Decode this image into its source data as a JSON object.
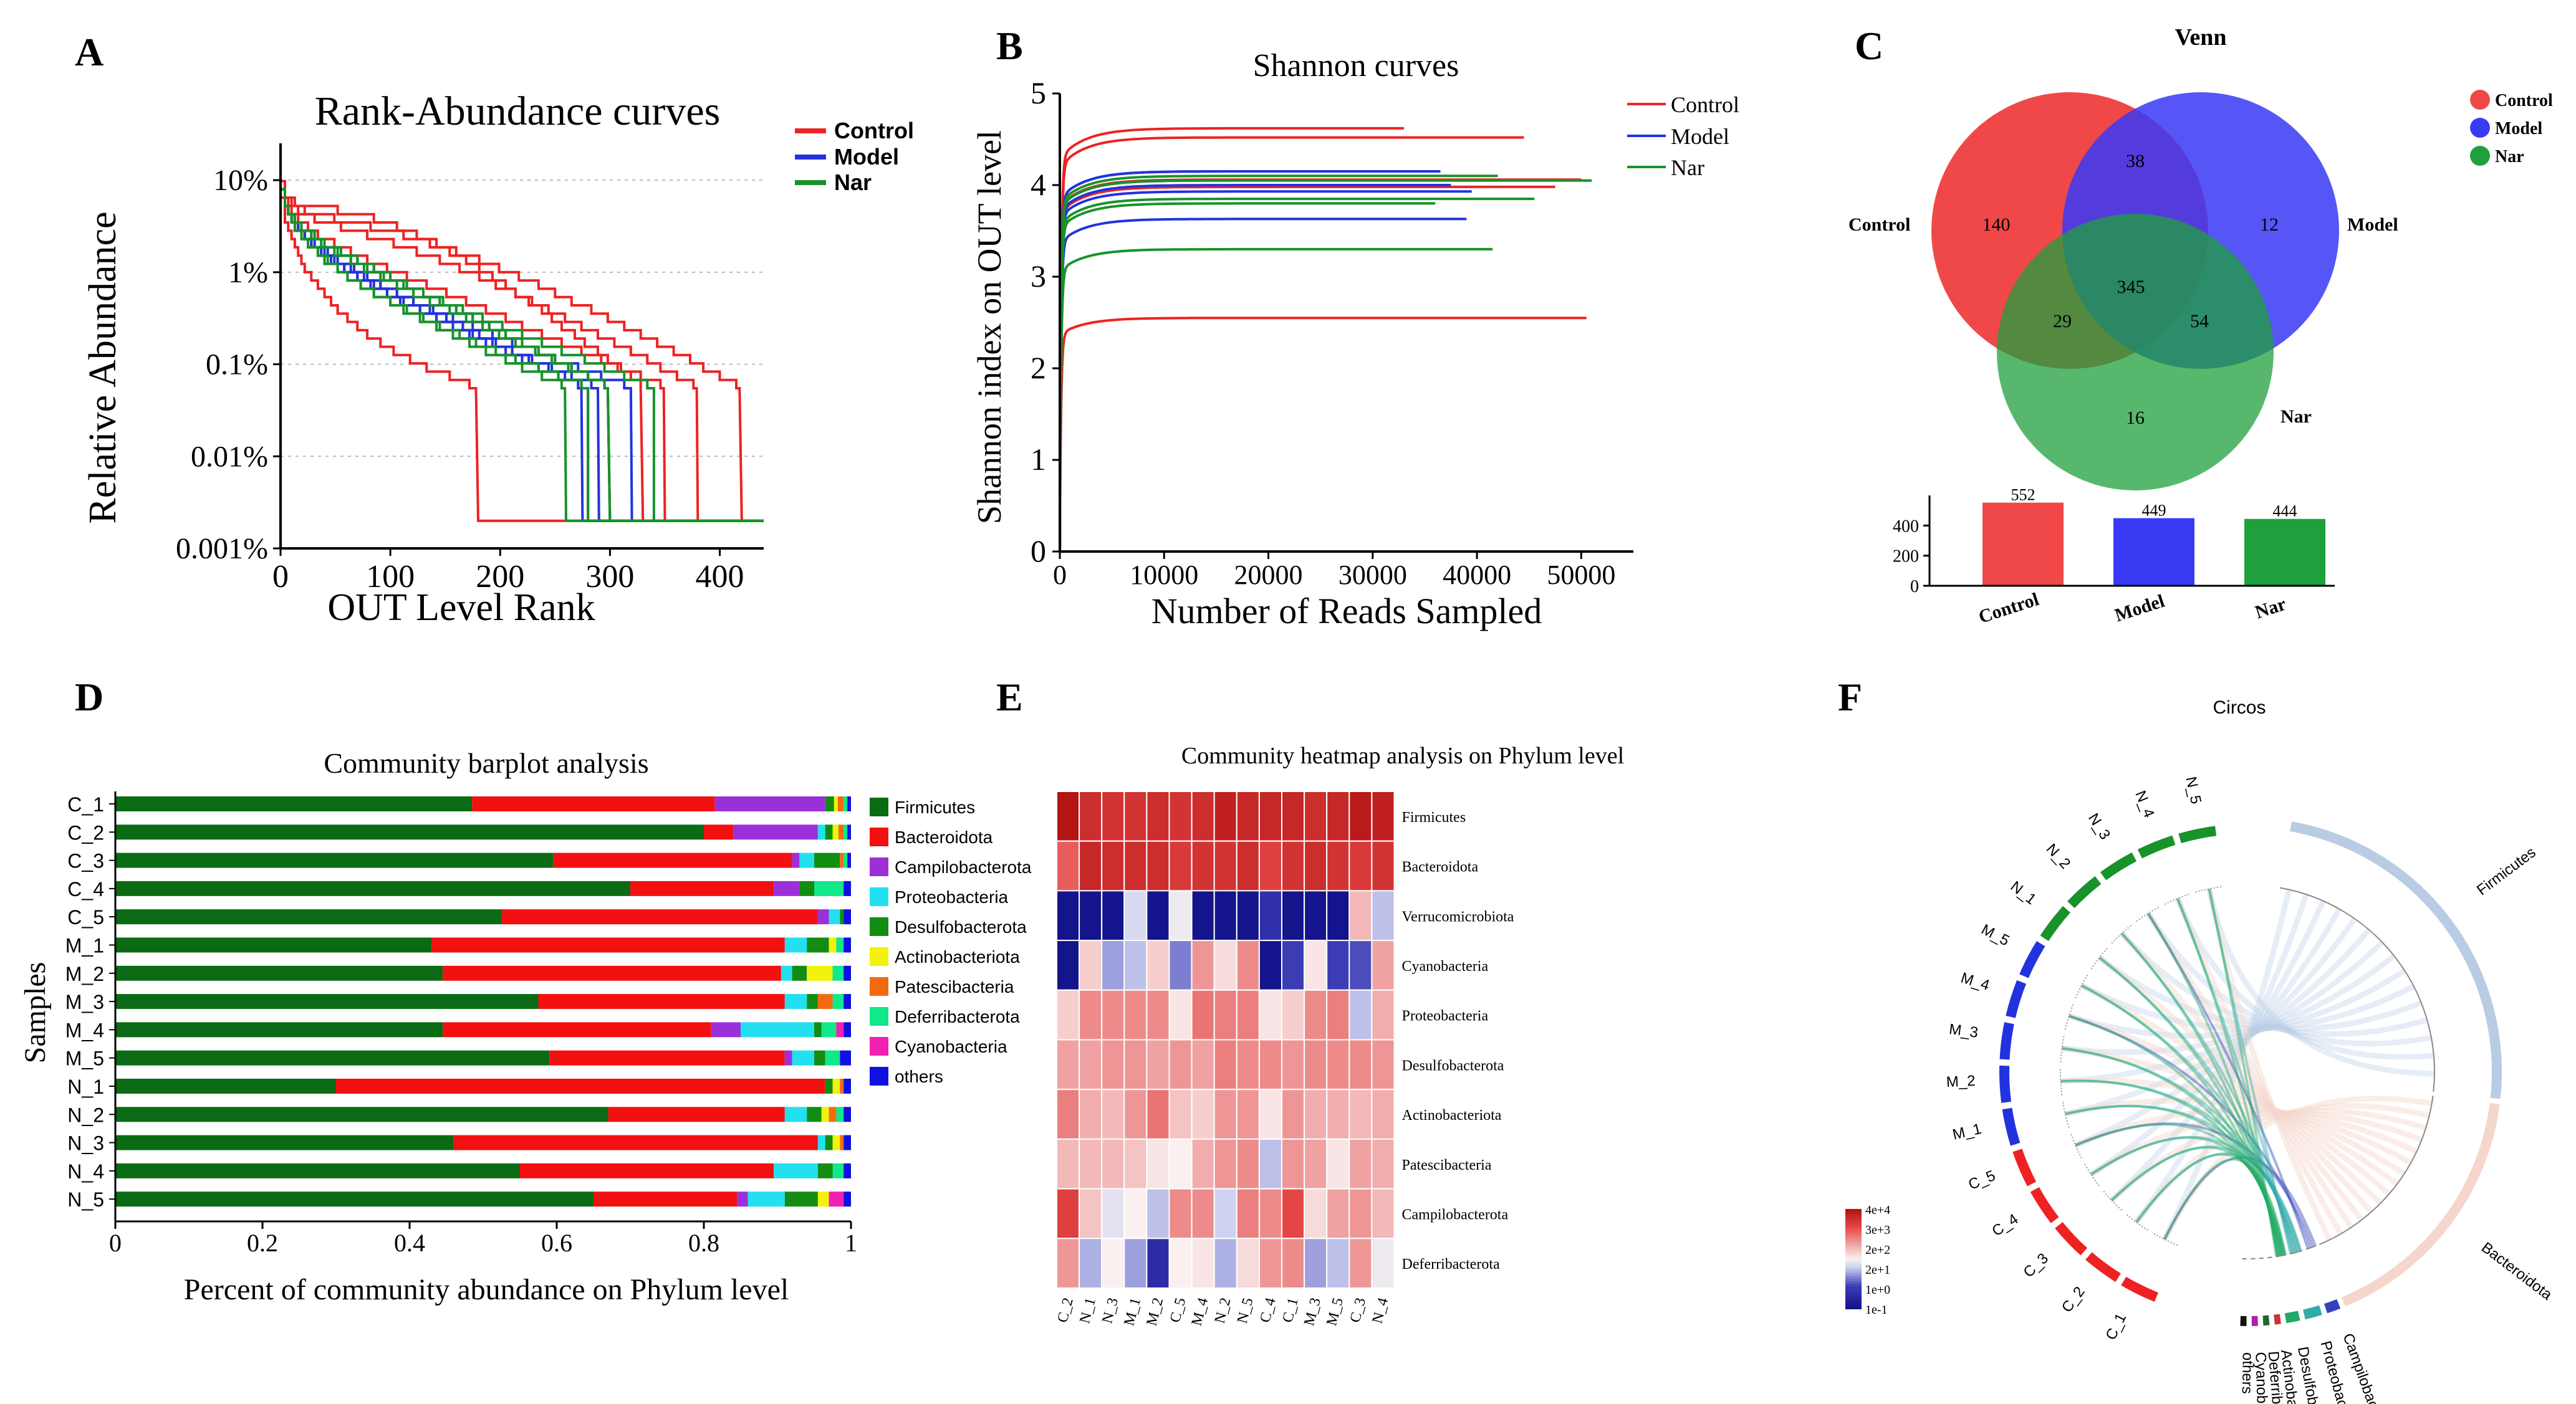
{
  "panels": {
    "A": {
      "letter": "A"
    },
    "B": {
      "letter": "B"
    },
    "C": {
      "letter": "C"
    },
    "D": {
      "letter": "D"
    },
    "E": {
      "letter": "E"
    },
    "F": {
      "letter": "F"
    }
  },
  "colors": {
    "control": "#ee2222",
    "model": "#2233dd",
    "nar": "#18922a",
    "venn_control": "#f04848",
    "venn_model": "#3a3af5",
    "venn_nar": "#1fa03c"
  },
  "chart_data": [
    {
      "id": "A",
      "type": "line",
      "title": "Rank-Abundance curves",
      "xlabel": "OUT Level Rank",
      "ylabel": "Relative Abundance",
      "xlim": [
        0,
        440
      ],
      "ylim_log10": [
        -3,
        1.4
      ],
      "xticks": [
        0,
        100,
        200,
        300,
        400
      ],
      "ytick_labels": [
        "10%",
        "1%",
        "0.1%",
        "0.01%",
        "0.001%"
      ],
      "legend": [
        "Control",
        "Model",
        "Nar"
      ],
      "series": [
        {
          "name": "Control",
          "curves": [
            [
              380,
              0.5
            ],
            [
              350,
              0.2
            ],
            [
              420,
              0.6
            ],
            [
              330,
              0.8
            ],
            [
              180,
              -0.3
            ]
          ]
        },
        {
          "name": "Model",
          "curves": [
            [
              280,
              0.1
            ],
            [
              290,
              0.0
            ],
            [
              300,
              0.2
            ],
            [
              275,
              0.05
            ],
            [
              320,
              0.0
            ]
          ]
        },
        {
          "name": "Nar",
          "curves": [
            [
              300,
              0.2
            ],
            [
              260,
              0.0
            ],
            [
              340,
              0.1
            ],
            [
              280,
              -0.05
            ],
            [
              300,
              0.15
            ]
          ]
        }
      ]
    },
    {
      "id": "B",
      "type": "line",
      "title": "Shannon curves",
      "xlabel": "Number of Reads Sampled",
      "ylabel": "Shannon index on OUT level",
      "xlim": [
        0,
        55000
      ],
      "ylim": [
        0,
        5
      ],
      "xticks": [
        0,
        10000,
        20000,
        30000,
        40000,
        50000
      ],
      "yticks": [
        0,
        1,
        2,
        3,
        4,
        5
      ],
      "legend": [
        "Control",
        "Model",
        "Nar"
      ],
      "series": [
        {
          "name": "Control",
          "curves": [
            [
              33000,
              4.62
            ],
            [
              44500,
              4.52
            ],
            [
              47500,
              3.98
            ],
            [
              50000,
              4.06
            ],
            [
              50500,
              2.55
            ]
          ]
        },
        {
          "name": "Model",
          "curves": [
            [
              33000,
              4.15
            ],
            [
              36500,
              4.15
            ],
            [
              37500,
              4.0
            ],
            [
              39500,
              3.93
            ],
            [
              39000,
              3.63
            ]
          ]
        },
        {
          "name": "Nar",
          "curves": [
            [
              42000,
              4.1
            ],
            [
              51000,
              4.05
            ],
            [
              45500,
              3.85
            ],
            [
              36000,
              3.8
            ],
            [
              41500,
              3.3
            ]
          ]
        }
      ]
    },
    {
      "id": "C",
      "type": "venn",
      "title": "Venn",
      "sets": [
        "Control",
        "Model",
        "Nar"
      ],
      "regions": {
        "Control_only": 140,
        "Model_only": 12,
        "Nar_only": 16,
        "Control_Model": 38,
        "Control_Nar": 29,
        "Model_Nar": 54,
        "All": 345
      },
      "totals": {
        "categories": [
          "Control",
          "Model",
          "Nar"
        ],
        "values": [
          552,
          449,
          444
        ]
      },
      "bar_yticks": [
        0,
        200,
        400
      ]
    },
    {
      "id": "D",
      "type": "bar",
      "title": "Community barplot analysis",
      "xlabel": "Percent of community abundance on Phylum level",
      "ylabel": "Samples",
      "xticks": [
        "0",
        "0.2",
        "0.4",
        "0.6",
        "0.8",
        "1"
      ],
      "categories": [
        "C_1",
        "C_2",
        "C_3",
        "C_4",
        "C_5",
        "M_1",
        "M_2",
        "M_3",
        "M_4",
        "M_5",
        "N_1",
        "N_2",
        "N_3",
        "N_4",
        "N_5"
      ],
      "series_names": [
        "Firmicutes",
        "Bacteroidota",
        "Campilobacterota",
        "Proteobacteria",
        "Desulfobacterota",
        "Actinobacteriota",
        "Patescibacteria",
        "Deferribacterota",
        "Cyanobacteria",
        "others"
      ],
      "series_colors": [
        "#0a6b14",
        "#f21010",
        "#9b30d9",
        "#22e0f0",
        "#128c12",
        "#f2f20a",
        "#f26a10",
        "#10e88a",
        "#f020b0",
        "#1010e0"
      ],
      "rows": [
        [
          0.485,
          0.33,
          0.15,
          0.0,
          0.012,
          0.005,
          0.008,
          0.005,
          0.0,
          0.005
        ],
        [
          0.8,
          0.04,
          0.115,
          0.01,
          0.01,
          0.008,
          0.007,
          0.005,
          0.0,
          0.005
        ],
        [
          0.595,
          0.325,
          0.01,
          0.02,
          0.035,
          0.0,
          0.005,
          0.005,
          0.0,
          0.005
        ],
        [
          0.7,
          0.195,
          0.035,
          0.0,
          0.02,
          0.0,
          0.0,
          0.04,
          0.0,
          0.01
        ],
        [
          0.525,
          0.43,
          0.015,
          0.015,
          0.005,
          0.0,
          0.0,
          0.0,
          0.0,
          0.01
        ],
        [
          0.43,
          0.48,
          0.0,
          0.03,
          0.03,
          0.01,
          0.0,
          0.01,
          0.0,
          0.01
        ],
        [
          0.445,
          0.46,
          0.0,
          0.015,
          0.02,
          0.035,
          0.0,
          0.015,
          0.0,
          0.01
        ],
        [
          0.575,
          0.335,
          0.0,
          0.03,
          0.015,
          0.0,
          0.02,
          0.015,
          0.0,
          0.01
        ],
        [
          0.445,
          0.365,
          0.04,
          0.1,
          0.01,
          0.0,
          0.0,
          0.02,
          0.01,
          0.01
        ],
        [
          0.59,
          0.32,
          0.01,
          0.03,
          0.015,
          0.0,
          0.0,
          0.02,
          0.0,
          0.015
        ],
        [
          0.3,
          0.665,
          0.0,
          0.0,
          0.01,
          0.01,
          0.005,
          0.0,
          0.0,
          0.01
        ],
        [
          0.67,
          0.24,
          0.0,
          0.03,
          0.02,
          0.01,
          0.01,
          0.01,
          0.0,
          0.01
        ],
        [
          0.46,
          0.495,
          0.0,
          0.01,
          0.01,
          0.01,
          0.005,
          0.0,
          0.0,
          0.01
        ],
        [
          0.55,
          0.345,
          0.0,
          0.06,
          0.02,
          0.0,
          0.0,
          0.015,
          0.0,
          0.01
        ],
        [
          0.65,
          0.195,
          0.015,
          0.05,
          0.045,
          0.015,
          0.0,
          0.0,
          0.02,
          0.01
        ]
      ]
    },
    {
      "id": "E",
      "type": "heatmap",
      "title": "Community heatmap analysis on Phylum level",
      "columns": [
        "C_2",
        "N_1",
        "N_3",
        "M_1",
        "M_2",
        "C_5",
        "M_4",
        "N_2",
        "N_5",
        "C_4",
        "C_1",
        "M_3",
        "M_5",
        "C_3",
        "N_4"
      ],
      "rows": [
        "Firmicutes",
        "Bacteroidota",
        "Verrucomicrobiota",
        "Cyanobacteria",
        "Proteobacteria",
        "Desulfobacterota",
        "Actinobacteriota",
        "Patescibacteria",
        "Campilobacterota",
        "Deferribacterota"
      ],
      "colorbar_labels": [
        "4e+4",
        "3e+3",
        "2e+2",
        "2e+1",
        "1e+0",
        "1e-1"
      ],
      "values": [
        [
          4.6,
          4.2,
          4.1,
          4.1,
          4.2,
          4.1,
          4.2,
          4.4,
          4.3,
          4.3,
          4.3,
          4.2,
          4.3,
          4.5,
          4.4
        ],
        [
          3.6,
          4.3,
          4.2,
          4.2,
          4.2,
          4.0,
          4.1,
          4.1,
          4.2,
          3.9,
          4.1,
          4.2,
          4.1,
          4.0,
          4.1
        ],
        [
          0.0,
          0.0,
          0.0,
          2.0,
          0.0,
          2.2,
          0.0,
          0.0,
          0.0,
          0.7,
          0.0,
          0.0,
          0.0,
          2.8,
          1.8
        ],
        [
          0.0,
          2.6,
          1.6,
          1.8,
          2.6,
          1.4,
          3.1,
          2.5,
          3.2,
          0.0,
          1.0,
          2.4,
          1.0,
          1.1,
          3.0
        ],
        [
          2.6,
          3.2,
          3.2,
          3.2,
          3.2,
          2.4,
          3.4,
          3.3,
          3.3,
          2.4,
          2.6,
          3.2,
          3.3,
          1.8,
          2.9
        ],
        [
          3.0,
          3.0,
          3.1,
          3.1,
          3.0,
          3.1,
          3.0,
          3.3,
          3.2,
          3.2,
          3.1,
          3.2,
          3.2,
          3.2,
          3.1
        ],
        [
          3.3,
          2.9,
          2.8,
          3.1,
          3.4,
          2.7,
          2.6,
          3.1,
          3.1,
          2.4,
          3.1,
          2.9,
          2.9,
          2.8,
          2.9
        ],
        [
          2.8,
          2.8,
          2.8,
          2.7,
          2.4,
          2.3,
          2.9,
          3.1,
          3.2,
          1.8,
          3.1,
          3.0,
          2.4,
          3.0,
          2.9
        ],
        [
          3.9,
          2.7,
          2.1,
          2.3,
          1.8,
          3.2,
          3.2,
          1.9,
          3.3,
          3.2,
          3.8,
          2.5,
          3.0,
          3.1,
          2.8
        ],
        [
          3.1,
          1.7,
          2.3,
          1.6,
          0.6,
          2.3,
          2.4,
          1.7,
          2.5,
          3.1,
          3.2,
          1.6,
          1.8,
          3.1,
          2.2
        ]
      ]
    },
    {
      "id": "F",
      "type": "circos",
      "title": "Circos",
      "samples_clockwise": [
        "N_5",
        "N_4",
        "N_3",
        "N_2",
        "N_1",
        "M_5",
        "M_4",
        "M_3",
        "M_2",
        "M_1",
        "C_5",
        "C_4",
        "C_3",
        "C_2",
        "C_1"
      ],
      "phyla": [
        "Firmicutes",
        "Bacteroidota",
        "Campilobacterota",
        "Proteobacteria",
        "Desulfobacterota",
        "Actinobacteriota",
        "Deferribacterota",
        "Cyanobacteria",
        "others"
      ],
      "phylum_share": [
        0.545,
        0.38,
        0.02,
        0.025,
        0.02,
        0.004,
        0.004,
        0.001,
        0.001
      ]
    }
  ]
}
